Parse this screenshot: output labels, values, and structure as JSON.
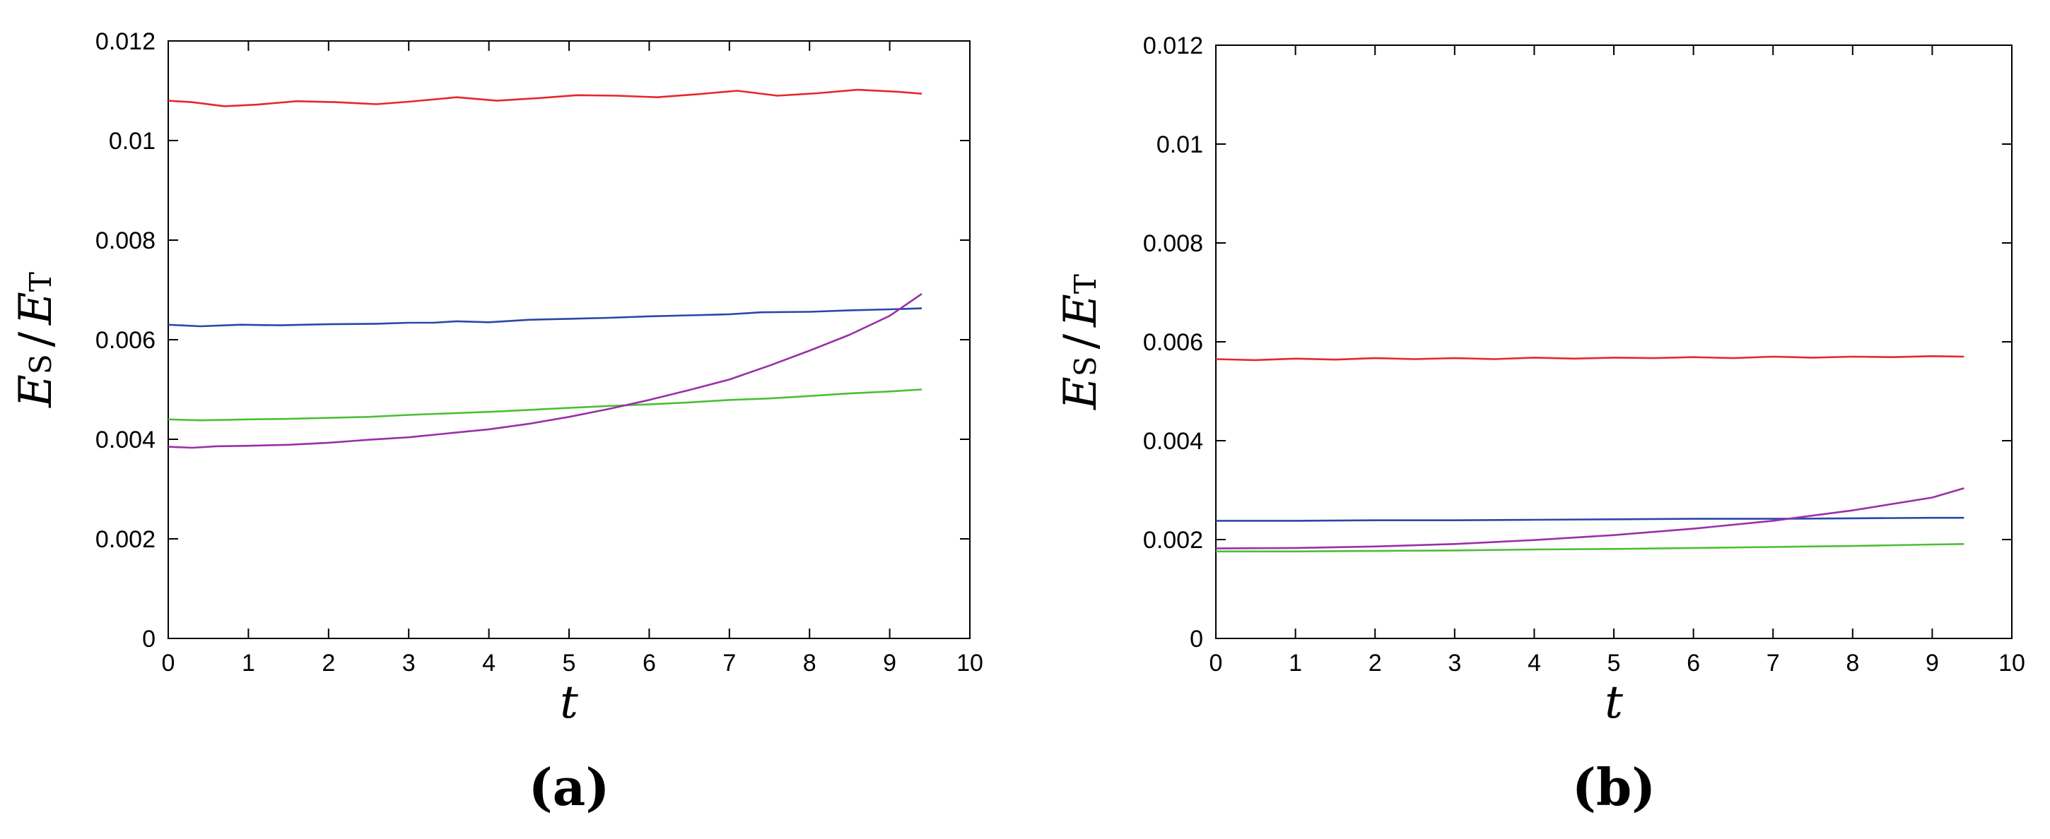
{
  "figure": {
    "panels": [
      {
        "label": "(a)"
      },
      {
        "label": "(b)"
      }
    ]
  },
  "chart_data": [
    {
      "type": "line",
      "panel_label": "(a)",
      "xlabel": "t",
      "ylabel": {
        "main_1": "E",
        "sub_1": "S",
        "slash": "/",
        "main_2": "E",
        "sub_2": "T"
      },
      "xlim": [
        0,
        10
      ],
      "ylim": [
        0,
        0.012
      ],
      "xticks": [
        "0",
        "1",
        "2",
        "3",
        "4",
        "5",
        "6",
        "7",
        "8",
        "9",
        "10"
      ],
      "yticks": [
        "0",
        "0.002",
        "0.004",
        "0.006",
        "0.008",
        "0.01",
        "0.012"
      ],
      "grid": false,
      "series": [
        {
          "color": "#e8262e",
          "x": [
            0,
            0.3,
            0.7,
            1.1,
            1.6,
            2.1,
            2.6,
            3.0,
            3.6,
            4.1,
            4.6,
            5.1,
            5.6,
            6.1,
            6.6,
            7.1,
            7.6,
            8.1,
            8.6,
            9.1,
            9.4
          ],
          "y": [
            0.0108,
            0.01077,
            0.01069,
            0.01072,
            0.01079,
            0.01077,
            0.01073,
            0.01078,
            0.01087,
            0.0108,
            0.01085,
            0.01091,
            0.0109,
            0.01087,
            0.01093,
            0.011,
            0.0109,
            0.01095,
            0.01102,
            0.01098,
            0.01094
          ]
        },
        {
          "color": "#2a47a8",
          "x": [
            0,
            0.4,
            0.9,
            1.4,
            2.0,
            2.6,
            3.0,
            3.3,
            3.6,
            4.0,
            4.5,
            5.0,
            5.5,
            6.0,
            6.5,
            7.0,
            7.4,
            8.0,
            8.5,
            9.0,
            9.4
          ],
          "y": [
            0.0063,
            0.00627,
            0.0063,
            0.00629,
            0.00631,
            0.00632,
            0.00634,
            0.00634,
            0.00637,
            0.00635,
            0.0064,
            0.00642,
            0.00644,
            0.00647,
            0.00649,
            0.00651,
            0.00655,
            0.00656,
            0.00659,
            0.00661,
            0.00663
          ]
        },
        {
          "color": "#4bbf36",
          "x": [
            0,
            0.4,
            1,
            1.5,
            2,
            2.5,
            3,
            3.5,
            4,
            4.5,
            5,
            5.5,
            6,
            6.5,
            7,
            7.5,
            8,
            8.5,
            9,
            9.4
          ],
          "y": [
            0.0044,
            0.00438,
            0.0044,
            0.00441,
            0.00443,
            0.00445,
            0.00449,
            0.00452,
            0.00455,
            0.00459,
            0.00463,
            0.00467,
            0.0047,
            0.00474,
            0.00479,
            0.00482,
            0.00487,
            0.00492,
            0.00496,
            0.005
          ]
        },
        {
          "color": "#9b2fa8",
          "x": [
            0,
            0.3,
            0.6,
            1,
            1.5,
            2,
            2.5,
            3,
            3.5,
            4,
            4.5,
            5,
            5.5,
            6,
            6.5,
            7,
            7.5,
            8,
            8.5,
            9,
            9.4
          ],
          "y": [
            0.00385,
            0.00383,
            0.00386,
            0.00387,
            0.00389,
            0.00393,
            0.00399,
            0.00404,
            0.00412,
            0.0042,
            0.00431,
            0.00445,
            0.00461,
            0.00479,
            0.00499,
            0.0052,
            0.00548,
            0.00578,
            0.0061,
            0.00648,
            0.00692
          ]
        }
      ]
    },
    {
      "type": "line",
      "panel_label": "(b)",
      "xlabel": "t",
      "ylabel": {
        "main_1": "E",
        "sub_1": "S",
        "slash": "/",
        "main_2": "E",
        "sub_2": "T"
      },
      "xlim": [
        0,
        10
      ],
      "ylim": [
        0,
        0.012
      ],
      "xticks": [
        "0",
        "1",
        "2",
        "3",
        "4",
        "5",
        "6",
        "7",
        "8",
        "9",
        "10"
      ],
      "yticks": [
        "0",
        "0.002",
        "0.004",
        "0.006",
        "0.008",
        "0.01",
        "0.012"
      ],
      "grid": false,
      "series": [
        {
          "color": "#e8262e",
          "x": [
            0,
            0.5,
            1,
            1.5,
            2,
            2.5,
            3,
            3.5,
            4,
            4.5,
            5,
            5.5,
            6,
            6.5,
            7,
            7.5,
            8,
            8.5,
            9,
            9.4
          ],
          "y": [
            0.00565,
            0.00563,
            0.00566,
            0.00564,
            0.00567,
            0.00565,
            0.00567,
            0.00565,
            0.00568,
            0.00566,
            0.00568,
            0.00567,
            0.00569,
            0.00567,
            0.0057,
            0.00568,
            0.0057,
            0.00569,
            0.00571,
            0.0057
          ]
        },
        {
          "color": "#2a47a8",
          "x": [
            0,
            1,
            2,
            3,
            4,
            5,
            6,
            7,
            8,
            9,
            9.4
          ],
          "y": [
            0.00238,
            0.00238,
            0.00239,
            0.00239,
            0.0024,
            0.00241,
            0.00242,
            0.00242,
            0.00243,
            0.00244,
            0.00244
          ]
        },
        {
          "color": "#4bbf36",
          "x": [
            0,
            1,
            2,
            3,
            4,
            5,
            6,
            7,
            8,
            9,
            9.4
          ],
          "y": [
            0.00176,
            0.00176,
            0.00177,
            0.00178,
            0.0018,
            0.00181,
            0.00183,
            0.00185,
            0.00187,
            0.0019,
            0.00191
          ]
        },
        {
          "color": "#9b2fa8",
          "x": [
            0,
            1,
            2,
            3,
            4,
            5,
            6,
            7,
            8,
            9,
            9.4
          ],
          "y": [
            0.00182,
            0.00183,
            0.00186,
            0.00191,
            0.00199,
            0.00209,
            0.00222,
            0.00238,
            0.00259,
            0.00285,
            0.00304
          ]
        }
      ]
    }
  ]
}
